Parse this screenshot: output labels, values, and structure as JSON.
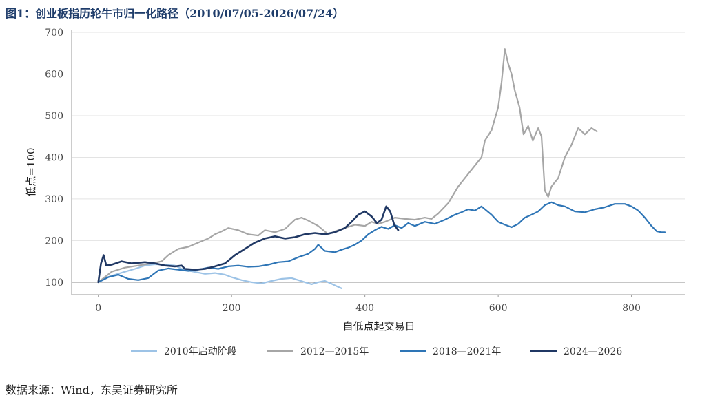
{
  "header": {
    "title": "图1：创业板指历轮牛市归一化路径（2010/07/05-2026/07/24）"
  },
  "footer": {
    "source": "数据来源：Wind，东吴证券研究所"
  },
  "chart_data": {
    "type": "line",
    "xlabel": "自低点起交易日",
    "ylabel": "低点=100",
    "xlim": [
      -40,
      880
    ],
    "ylim": [
      70,
      705
    ],
    "x_ticks": [
      0,
      200,
      400,
      600,
      800
    ],
    "y_ticks": [
      100,
      200,
      300,
      400,
      500,
      600,
      700
    ],
    "grid": "horizontal",
    "baseline": 100,
    "legend_position": "bottom",
    "series": [
      {
        "name": "2010年启动阶段",
        "color": "#9dc3e6",
        "points": [
          [
            0,
            100
          ],
          [
            10,
            110
          ],
          [
            25,
            118
          ],
          [
            40,
            125
          ],
          [
            55,
            132
          ],
          [
            70,
            140
          ],
          [
            85,
            143
          ],
          [
            100,
            142
          ],
          [
            115,
            140
          ],
          [
            125,
            132
          ],
          [
            140,
            126
          ],
          [
            160,
            120
          ],
          [
            175,
            122
          ],
          [
            190,
            118
          ],
          [
            200,
            112
          ],
          [
            215,
            105
          ],
          [
            230,
            100
          ],
          [
            245,
            97
          ],
          [
            260,
            103
          ],
          [
            275,
            108
          ],
          [
            290,
            110
          ],
          [
            300,
            105
          ],
          [
            310,
            100
          ],
          [
            320,
            95
          ],
          [
            330,
            100
          ],
          [
            340,
            103
          ],
          [
            350,
            96
          ],
          [
            358,
            90
          ],
          [
            365,
            85
          ]
        ]
      },
      {
        "name": "2012—2015年",
        "color": "#a6a6a6",
        "points": [
          [
            0,
            100
          ],
          [
            20,
            125
          ],
          [
            40,
            135
          ],
          [
            60,
            140
          ],
          [
            80,
            145
          ],
          [
            95,
            150
          ],
          [
            105,
            165
          ],
          [
            120,
            180
          ],
          [
            135,
            185
          ],
          [
            150,
            195
          ],
          [
            165,
            205
          ],
          [
            175,
            215
          ],
          [
            185,
            222
          ],
          [
            195,
            230
          ],
          [
            210,
            225
          ],
          [
            225,
            215
          ],
          [
            240,
            212
          ],
          [
            250,
            225
          ],
          [
            265,
            220
          ],
          [
            280,
            228
          ],
          [
            295,
            250
          ],
          [
            305,
            255
          ],
          [
            315,
            248
          ],
          [
            330,
            235
          ],
          [
            345,
            215
          ],
          [
            355,
            222
          ],
          [
            370,
            230
          ],
          [
            385,
            238
          ],
          [
            400,
            235
          ],
          [
            410,
            245
          ],
          [
            420,
            240
          ],
          [
            430,
            245
          ],
          [
            445,
            255
          ],
          [
            460,
            252
          ],
          [
            475,
            250
          ],
          [
            490,
            255
          ],
          [
            500,
            252
          ],
          [
            510,
            265
          ],
          [
            525,
            290
          ],
          [
            540,
            330
          ],
          [
            555,
            360
          ],
          [
            565,
            380
          ],
          [
            575,
            400
          ],
          [
            580,
            440
          ],
          [
            590,
            465
          ],
          [
            600,
            520
          ],
          [
            605,
            580
          ],
          [
            610,
            660
          ],
          [
            615,
            625
          ],
          [
            620,
            600
          ],
          [
            625,
            560
          ],
          [
            632,
            520
          ],
          [
            638,
            455
          ],
          [
            645,
            475
          ],
          [
            652,
            440
          ],
          [
            660,
            470
          ],
          [
            665,
            450
          ],
          [
            670,
            320
          ],
          [
            675,
            305
          ],
          [
            680,
            330
          ],
          [
            690,
            350
          ],
          [
            700,
            400
          ],
          [
            710,
            430
          ],
          [
            720,
            470
          ],
          [
            730,
            455
          ],
          [
            740,
            470
          ],
          [
            748,
            462
          ]
        ]
      },
      {
        "name": "2018—2021年",
        "color": "#2e75b6",
        "points": [
          [
            0,
            100
          ],
          [
            15,
            112
          ],
          [
            30,
            118
          ],
          [
            45,
            108
          ],
          [
            60,
            105
          ],
          [
            75,
            110
          ],
          [
            90,
            128
          ],
          [
            105,
            133
          ],
          [
            120,
            130
          ],
          [
            135,
            127
          ],
          [
            150,
            130
          ],
          [
            165,
            135
          ],
          [
            180,
            132
          ],
          [
            195,
            138
          ],
          [
            210,
            140
          ],
          [
            225,
            137
          ],
          [
            240,
            138
          ],
          [
            255,
            142
          ],
          [
            270,
            148
          ],
          [
            285,
            150
          ],
          [
            300,
            160
          ],
          [
            315,
            168
          ],
          [
            325,
            180
          ],
          [
            330,
            190
          ],
          [
            340,
            175
          ],
          [
            355,
            172
          ],
          [
            365,
            178
          ],
          [
            375,
            183
          ],
          [
            385,
            190
          ],
          [
            395,
            200
          ],
          [
            405,
            215
          ],
          [
            415,
            225
          ],
          [
            425,
            233
          ],
          [
            435,
            228
          ],
          [
            445,
            237
          ],
          [
            455,
            230
          ],
          [
            465,
            242
          ],
          [
            475,
            235
          ],
          [
            490,
            245
          ],
          [
            505,
            240
          ],
          [
            520,
            250
          ],
          [
            535,
            262
          ],
          [
            545,
            268
          ],
          [
            555,
            275
          ],
          [
            565,
            272
          ],
          [
            575,
            282
          ],
          [
            590,
            262
          ],
          [
            600,
            245
          ],
          [
            610,
            238
          ],
          [
            620,
            232
          ],
          [
            630,
            240
          ],
          [
            640,
            255
          ],
          [
            650,
            262
          ],
          [
            660,
            270
          ],
          [
            670,
            285
          ],
          [
            680,
            292
          ],
          [
            690,
            285
          ],
          [
            700,
            282
          ],
          [
            715,
            270
          ],
          [
            730,
            268
          ],
          [
            745,
            275
          ],
          [
            760,
            280
          ],
          [
            775,
            288
          ],
          [
            790,
            288
          ],
          [
            800,
            282
          ],
          [
            810,
            272
          ],
          [
            820,
            255
          ],
          [
            830,
            235
          ],
          [
            838,
            222
          ],
          [
            845,
            220
          ],
          [
            850,
            220
          ]
        ]
      },
      {
        "name": "2024—2026",
        "color": "#203864",
        "points": [
          [
            0,
            100
          ],
          [
            4,
            145
          ],
          [
            8,
            165
          ],
          [
            12,
            140
          ],
          [
            20,
            142
          ],
          [
            35,
            150
          ],
          [
            50,
            145
          ],
          [
            70,
            148
          ],
          [
            85,
            145
          ],
          [
            100,
            140
          ],
          [
            115,
            138
          ],
          [
            125,
            140
          ],
          [
            130,
            132
          ],
          [
            145,
            130
          ],
          [
            160,
            132
          ],
          [
            175,
            138
          ],
          [
            190,
            145
          ],
          [
            205,
            165
          ],
          [
            220,
            180
          ],
          [
            235,
            195
          ],
          [
            250,
            205
          ],
          [
            265,
            210
          ],
          [
            280,
            205
          ],
          [
            295,
            208
          ],
          [
            310,
            215
          ],
          [
            325,
            218
          ],
          [
            340,
            215
          ],
          [
            355,
            220
          ],
          [
            370,
            230
          ],
          [
            380,
            245
          ],
          [
            390,
            262
          ],
          [
            400,
            270
          ],
          [
            410,
            258
          ],
          [
            418,
            242
          ],
          [
            425,
            250
          ],
          [
            432,
            282
          ],
          [
            438,
            270
          ],
          [
            444,
            238
          ],
          [
            450,
            225
          ]
        ]
      }
    ]
  }
}
